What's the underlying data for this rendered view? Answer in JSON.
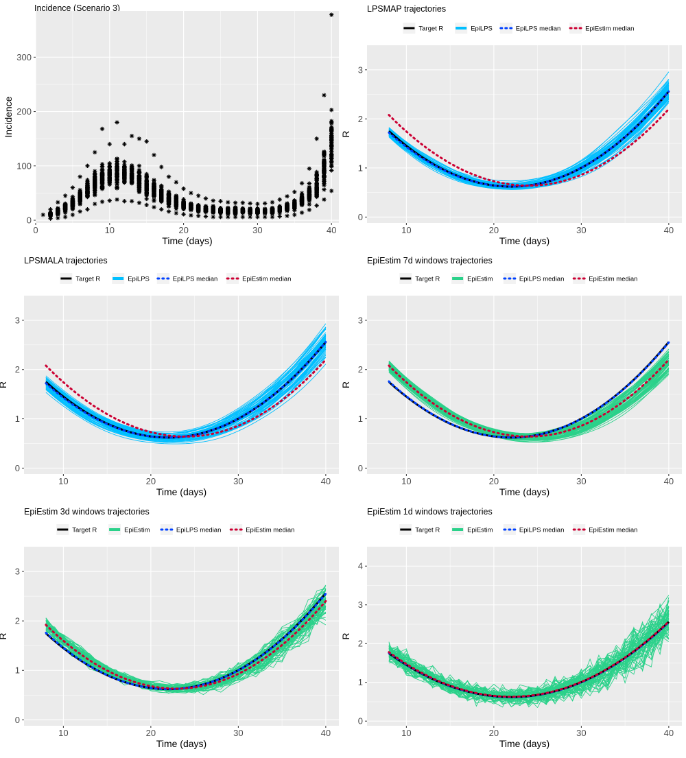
{
  "colors": {
    "panel_bg": "#EBEBEB",
    "grid": "#FFFFFF",
    "target": "#000000",
    "epilps": "#00BFFF",
    "epiestim": "#2BD18A",
    "epilps_median": "#0040FF",
    "epiestim_median": "#CC0033",
    "points": "#000000",
    "text": "#000000",
    "tick_text": "#4D4D4D"
  },
  "legend": {
    "target": "Target R",
    "epilps_median": "EpiLPS median",
    "epiestim_median": "EpiEstim median"
  },
  "chart_data": [
    {
      "type": "scatter",
      "title": "Incidence (Scenario 3)",
      "xlabel": "Time (days)",
      "ylabel": "Incidence",
      "xlim": [
        0,
        41
      ],
      "ylim": [
        -5,
        385
      ],
      "xticks": [
        0,
        10,
        20,
        30,
        40
      ],
      "yticks": [
        0,
        100,
        200,
        300
      ],
      "marker": "asterisk",
      "grid": true,
      "legend": "none",
      "days": [
        1,
        2,
        3,
        4,
        5,
        6,
        7,
        8,
        9,
        10,
        11,
        12,
        13,
        14,
        15,
        16,
        17,
        18,
        19,
        20,
        21,
        22,
        23,
        24,
        25,
        26,
        27,
        28,
        29,
        30,
        31,
        32,
        33,
        34,
        35,
        36,
        37,
        38,
        39,
        40
      ],
      "mean": [
        10,
        11,
        16,
        23,
        32,
        43,
        56,
        68,
        77,
        83,
        85,
        84,
        79,
        73,
        64,
        56,
        47,
        40,
        34,
        29,
        25,
        22,
        20,
        19,
        18,
        18,
        17,
        17,
        17,
        17,
        17,
        18,
        20,
        23,
        28,
        36,
        48,
        66,
        94,
        138
      ],
      "min": [
        10,
        3,
        4,
        6,
        10,
        16,
        20,
        30,
        34,
        36,
        38,
        35,
        35,
        32,
        28,
        24,
        20,
        16,
        13,
        11,
        9,
        8,
        7,
        6,
        6,
        6,
        6,
        6,
        6,
        6,
        6,
        6,
        7,
        8,
        10,
        14,
        19,
        27,
        38,
        54
      ],
      "max": [
        10,
        20,
        33,
        45,
        60,
        80,
        100,
        125,
        168,
        140,
        180,
        140,
        155,
        150,
        145,
        120,
        98,
        80,
        70,
        58,
        50,
        45,
        40,
        36,
        35,
        33,
        32,
        32,
        31,
        30,
        31,
        33,
        38,
        44,
        52,
        68,
        95,
        150,
        230,
        378
      ]
    },
    {
      "type": "line",
      "title": "LPSMAP trajectories",
      "xlabel": "Time (days)",
      "ylabel": "R",
      "xlim": [
        5.5,
        41.5
      ],
      "ylim": [
        -0.12,
        3.5
      ],
      "xticks": [
        10,
        20,
        30,
        40
      ],
      "yticks": [
        0,
        1,
        2,
        3
      ],
      "legend": "top",
      "traj_label": "EpiLPS",
      "traj_color": "#00BFFF",
      "traj_style": "smooth",
      "traj_count": 60,
      "spread_start": 0.2,
      "spread_end": 0.55,
      "x": [
        8,
        40
      ],
      "target_R": {
        "vertex_day": 22,
        "vertex_value": 0.62,
        "value_day8": 1.75,
        "value_day40": 2.56
      },
      "epilps_median": {
        "vertex_day": 22,
        "vertex_value": 0.62,
        "value_day8": 1.72,
        "value_day40": 2.56
      },
      "epiestim_median": {
        "vertex_day": 24,
        "vertex_value": 0.64,
        "value_day8": 2.08,
        "value_day40": 2.2
      }
    },
    {
      "type": "line",
      "title": "LPSMALA trajectories",
      "xlabel": "Time (days)",
      "ylabel": "R",
      "xlim": [
        5.5,
        41.5
      ],
      "ylim": [
        -0.12,
        3.5
      ],
      "xticks": [
        10,
        20,
        30,
        40
      ],
      "yticks": [
        0,
        1,
        2,
        3
      ],
      "legend": "top",
      "traj_label": "EpiLPS",
      "traj_color": "#00BFFF",
      "traj_style": "smooth",
      "traj_count": 60,
      "spread_start": 0.25,
      "spread_end": 0.6,
      "x": [
        8,
        40
      ],
      "target_R": {
        "vertex_day": 22,
        "vertex_value": 0.62,
        "value_day8": 1.75,
        "value_day40": 2.56
      },
      "epilps_median": {
        "vertex_day": 22,
        "vertex_value": 0.62,
        "value_day8": 1.72,
        "value_day40": 2.56
      },
      "epiestim_median": {
        "vertex_day": 24,
        "vertex_value": 0.64,
        "value_day8": 2.08,
        "value_day40": 2.2
      }
    },
    {
      "type": "line",
      "title": "EpiEstim 7d windows trajectories",
      "xlabel": "Time (days)",
      "ylabel": "R",
      "xlim": [
        5.5,
        41.5
      ],
      "ylim": [
        -0.12,
        3.5
      ],
      "xticks": [
        10,
        20,
        30,
        40
      ],
      "yticks": [
        0,
        1,
        2,
        3
      ],
      "legend": "top",
      "traj_label": "EpiEstim",
      "traj_color": "#2BD18A",
      "traj_style": "smooth",
      "traj_count": 60,
      "spread_start": 0.25,
      "spread_end": 0.55,
      "x": [
        8,
        40
      ],
      "target_R": {
        "vertex_day": 22,
        "vertex_value": 0.62,
        "value_day8": 1.75,
        "value_day40": 2.56
      },
      "epilps_median": {
        "vertex_day": 22,
        "vertex_value": 0.62,
        "value_day8": 1.76,
        "value_day40": 2.55
      },
      "epiestim_median": {
        "vertex_day": 24,
        "vertex_value": 0.64,
        "value_day8": 2.08,
        "value_day40": 2.2
      }
    },
    {
      "type": "line",
      "title": "EpiEstim 3d windows trajectories",
      "xlabel": "Time (days)",
      "ylabel": "R",
      "xlim": [
        5.5,
        41.5
      ],
      "ylim": [
        -0.12,
        3.5
      ],
      "xticks": [
        10,
        20,
        30,
        40
      ],
      "yticks": [
        0,
        1,
        2,
        3
      ],
      "legend": "top",
      "traj_label": "EpiEstim",
      "traj_color": "#2BD18A",
      "traj_style": "jagged",
      "traj_count": 60,
      "spread_start": 0.3,
      "spread_end": 0.8,
      "x": [
        8,
        40
      ],
      "target_R": {
        "vertex_day": 22,
        "vertex_value": 0.62,
        "value_day8": 1.75,
        "value_day40": 2.56
      },
      "epilps_median": {
        "vertex_day": 22,
        "vertex_value": 0.62,
        "value_day8": 1.76,
        "value_day40": 2.55
      },
      "epiestim_median": {
        "vertex_day": 23,
        "vertex_value": 0.63,
        "value_day8": 1.92,
        "value_day40": 2.4
      }
    },
    {
      "type": "line",
      "title": "EpiEstim 1d windows trajectories",
      "xlabel": "Time (days)",
      "ylabel": "R",
      "xlim": [
        5.5,
        41.5
      ],
      "ylim": [
        -0.12,
        4.5
      ],
      "xticks": [
        10,
        20,
        30,
        40
      ],
      "yticks": [
        0,
        1,
        2,
        3,
        4
      ],
      "legend": "top",
      "traj_label": "EpiEstim",
      "traj_color": "#2BD18A",
      "traj_style": "noisy",
      "traj_count": 60,
      "spread_start": 0.5,
      "spread_end": 1.2,
      "x": [
        8,
        40
      ],
      "target_R": {
        "vertex_day": 22,
        "vertex_value": 0.62,
        "value_day8": 1.75,
        "value_day40": 2.56
      },
      "epilps_median": {
        "vertex_day": 22,
        "vertex_value": 0.62,
        "value_day8": 1.76,
        "value_day40": 2.55
      },
      "epiestim_median": {
        "vertex_day": 22,
        "vertex_value": 0.63,
        "value_day8": 1.78,
        "value_day40": 2.57
      }
    }
  ]
}
